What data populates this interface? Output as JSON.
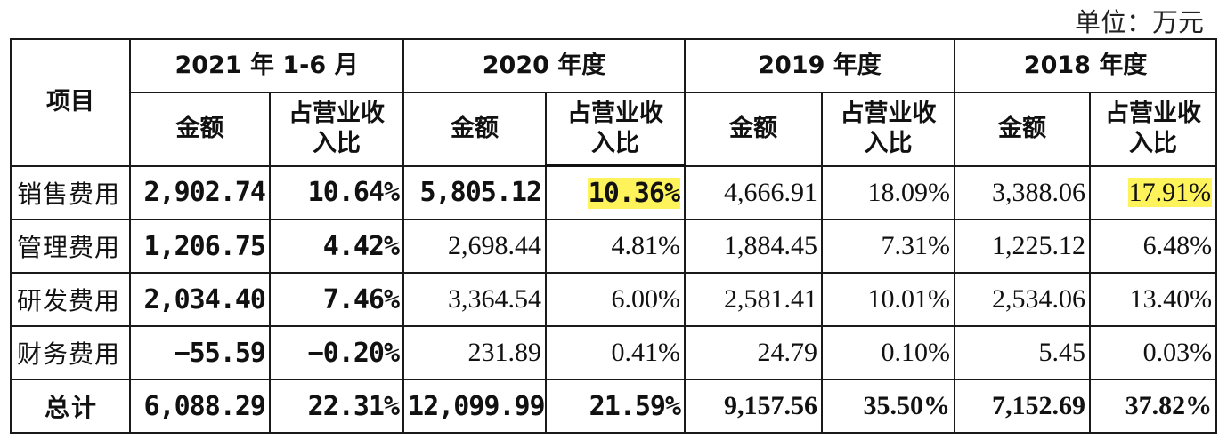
{
  "unit_label": "单位：万元",
  "header": {
    "item": "项目",
    "periods": [
      "2021 年 1-6 月",
      "2020 年度",
      "2019 年度",
      "2018 年度"
    ],
    "amount": "金额",
    "ratio_line1": "占营业收",
    "ratio_line2": "入比"
  },
  "rows": [
    {
      "label": "销售费用",
      "c": [
        "2,902.74",
        "10.64%",
        "5,805.12",
        "10.36%",
        "4,666.91",
        "18.09%",
        "3,388.06",
        "17.91%"
      ]
    },
    {
      "label": "管理费用",
      "c": [
        "1,206.75",
        "4.42%",
        "2,698.44",
        "4.81%",
        "1,884.45",
        "7.31%",
        "1,225.12",
        "6.48%"
      ]
    },
    {
      "label": "研发费用",
      "c": [
        "2,034.40",
        "7.46%",
        "3,364.54",
        "6.00%",
        "2,581.41",
        "10.01%",
        "2,534.06",
        "13.40%"
      ]
    },
    {
      "label": "财务费用",
      "c": [
        "−55.59",
        "−0.20%",
        "231.89",
        "0.41%",
        "24.79",
        "0.10%",
        "5.45",
        "0.03%"
      ]
    },
    {
      "label": "总计",
      "c": [
        "6,088.29",
        "22.31%",
        "12,099.99",
        "21.59%",
        "9,157.56",
        "35.50%",
        "7,152.69",
        "37.82%"
      ]
    }
  ],
  "highlight_color": "#fff35c"
}
